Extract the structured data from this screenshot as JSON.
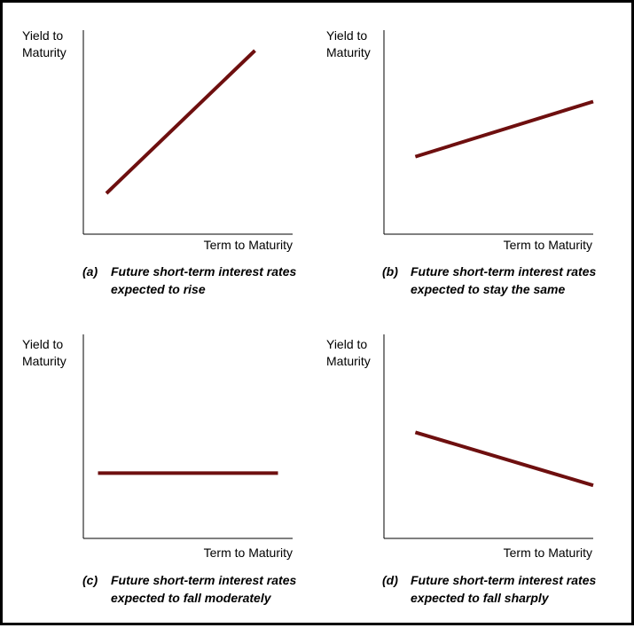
{
  "colors": {
    "curve": "#6e0f0f",
    "axis": "#000000",
    "border": "#000000"
  },
  "panels": [
    {
      "ylabel_lines": [
        "Yield to",
        "Maturity"
      ],
      "xlabel": "Term to Maturity",
      "caption_letter": "(a)",
      "caption_lines": [
        "Future short-term interest rates",
        "expected to rise"
      ]
    },
    {
      "ylabel_lines": [
        "Yield to",
        "Maturity"
      ],
      "xlabel": "Term to Maturity",
      "caption_letter": "(b)",
      "caption_lines": [
        "Future short-term interest rates",
        "expected to stay the same"
      ]
    },
    {
      "ylabel_lines": [
        "Yield to",
        "Maturity"
      ],
      "xlabel": "Term to Maturity",
      "caption_letter": "(c)",
      "caption_lines": [
        "Future short-term interest rates",
        "expected to fall moderately"
      ]
    },
    {
      "ylabel_lines": [
        "Yield to",
        "Maturity"
      ],
      "xlabel": "Term to Maturity",
      "caption_letter": "(d)",
      "caption_lines": [
        "Future short-term interest rates",
        "expected to fall sharply"
      ]
    }
  ],
  "chart_data": [
    {
      "type": "line",
      "title": "",
      "xlabel": "Term to Maturity",
      "ylabel": "Yield to Maturity",
      "xlim": [
        0,
        1
      ],
      "ylim": [
        0,
        1
      ],
      "grid": false,
      "series": [
        {
          "x": [
            0.11,
            0.82
          ],
          "y": [
            0.2,
            0.9
          ]
        }
      ]
    },
    {
      "type": "line",
      "title": "",
      "xlabel": "Term to Maturity",
      "ylabel": "Yield to Maturity",
      "xlim": [
        0,
        1
      ],
      "ylim": [
        0,
        1
      ],
      "grid": false,
      "series": [
        {
          "x": [
            0.15,
            1.0
          ],
          "y": [
            0.38,
            0.65
          ]
        }
      ]
    },
    {
      "type": "line",
      "title": "",
      "xlabel": "Term to Maturity",
      "ylabel": "Yield to Maturity",
      "xlim": [
        0,
        1
      ],
      "ylim": [
        0,
        1
      ],
      "grid": false,
      "series": [
        {
          "x": [
            0.07,
            0.93
          ],
          "y": [
            0.32,
            0.32
          ]
        }
      ]
    },
    {
      "type": "line",
      "title": "",
      "xlabel": "Term to Maturity",
      "ylabel": "Yield to Maturity",
      "xlim": [
        0,
        1
      ],
      "ylim": [
        0,
        1
      ],
      "grid": false,
      "series": [
        {
          "x": [
            0.15,
            1.0
          ],
          "y": [
            0.52,
            0.26
          ]
        }
      ]
    }
  ]
}
